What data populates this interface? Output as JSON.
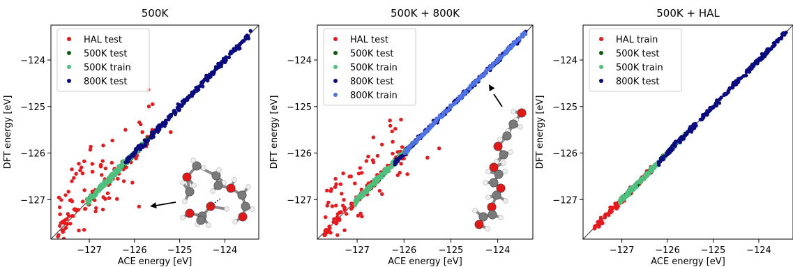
{
  "chart_data": [
    {
      "type": "scatter",
      "title": "500K",
      "xlabel": "ACE energy [eV]",
      "ylabel": "DFT energy [eV]",
      "xlim": [
        -127.85,
        -123.25
      ],
      "ylim": [
        -127.85,
        -123.25
      ],
      "xticks": [
        -127,
        -126,
        -125,
        -124
      ],
      "yticks": [
        -127,
        -126,
        -125,
        -124
      ],
      "tick_labels": [
        "−127",
        "−126",
        "−125",
        "−124"
      ],
      "legend_position": "top-left",
      "diagonal_line": true,
      "inset": "molecule with arrow pointing to outlier point",
      "series": [
        {
          "name": "HAL test",
          "color": "#e8191c",
          "x_range": [
            -127.7,
            -125.6
          ],
          "offset_spread": 0.8,
          "points": 130
        },
        {
          "name": "500K test",
          "color": "#0b5e10",
          "x_range": [
            -127.05,
            -125.7
          ],
          "offset_spread": 0.05,
          "points": 90
        },
        {
          "name": "500K train",
          "color": "#4fbf7d",
          "x_range": [
            -127.05,
            -125.8
          ],
          "offset_spread": 0.06,
          "points": 220
        },
        {
          "name": "800K test",
          "color": "#0b0b80",
          "x_range": [
            -126.2,
            -123.4
          ],
          "offset_spread": 0.07,
          "points": 230
        }
      ],
      "outliers": [
        {
          "series": "HAL test",
          "x": -125.9,
          "y": -127.15
        },
        {
          "series": "HAL test",
          "x": -125.6,
          "y": -124.95
        },
        {
          "series": "HAL test",
          "x": -126.2,
          "y": -125.5
        },
        {
          "series": "HAL test",
          "x": -125.2,
          "y": -125.55
        }
      ]
    },
    {
      "type": "scatter",
      "title": "500K + 800K",
      "xlabel": "ACE energy [eV]",
      "ylabel": "DFT energy [eV]",
      "xlim": [
        -127.85,
        -123.25
      ],
      "ylim": [
        -127.85,
        -123.25
      ],
      "xticks": [
        -127,
        -126,
        -125,
        -124
      ],
      "yticks": [
        -127,
        -126,
        -125,
        -124
      ],
      "tick_labels": [
        "−127",
        "−126",
        "−125",
        "−124"
      ],
      "legend_position": "top-left",
      "diagonal_line": true,
      "inset": "chain molecule with arrow pointing to diagonal",
      "series": [
        {
          "name": "HAL test",
          "color": "#e8191c",
          "x_range": [
            -127.7,
            -125.9
          ],
          "offset_spread": 0.7,
          "points": 130
        },
        {
          "name": "500K test",
          "color": "#0b5e10",
          "x_range": [
            -127.05,
            -125.7
          ],
          "offset_spread": 0.05,
          "points": 90
        },
        {
          "name": "500K train",
          "color": "#4fbf7d",
          "x_range": [
            -127.05,
            -125.8
          ],
          "offset_spread": 0.06,
          "points": 220
        },
        {
          "name": "800K test",
          "color": "#0b0b80",
          "x_range": [
            -126.2,
            -123.4
          ],
          "offset_spread": 0.05,
          "points": 200
        },
        {
          "name": "800K train",
          "color": "#4f73e3",
          "x_range": [
            -126.0,
            -123.4
          ],
          "offset_spread": 0.04,
          "points": 220
        }
      ],
      "outliers": [
        {
          "series": "HAL test",
          "x": -125.25,
          "y": -125.9
        },
        {
          "series": "HAL test",
          "x": -126.3,
          "y": -125.3
        },
        {
          "series": "HAL test",
          "x": -125.5,
          "y": -126.1
        }
      ]
    },
    {
      "type": "scatter",
      "title": "500K + HAL",
      "xlabel": "ACE energy [eV]",
      "ylabel": "DFT energy [eV]",
      "xlim": [
        -127.85,
        -123.25
      ],
      "ylim": [
        -127.85,
        -123.25
      ],
      "xticks": [
        -127,
        -126,
        -125,
        -124
      ],
      "yticks": [
        -127,
        -126,
        -125,
        -124
      ],
      "tick_labels": [
        "−127",
        "−126",
        "−125",
        "−124"
      ],
      "legend_position": "top-left",
      "diagonal_line": true,
      "series": [
        {
          "name": "HAL train",
          "color": "#e8191c",
          "x_range": [
            -127.6,
            -126.3
          ],
          "offset_spread": 0.07,
          "points": 110
        },
        {
          "name": "500K test",
          "color": "#0b5e10",
          "x_range": [
            -127.0,
            -125.7
          ],
          "offset_spread": 0.04,
          "points": 90
        },
        {
          "name": "500K train",
          "color": "#4fbf7d",
          "x_range": [
            -127.05,
            -125.6
          ],
          "offset_spread": 0.05,
          "points": 220
        },
        {
          "name": "800K test",
          "color": "#0b0b80",
          "x_range": [
            -126.2,
            -123.4
          ],
          "offset_spread": 0.06,
          "points": 230
        }
      ],
      "outliers": []
    }
  ]
}
